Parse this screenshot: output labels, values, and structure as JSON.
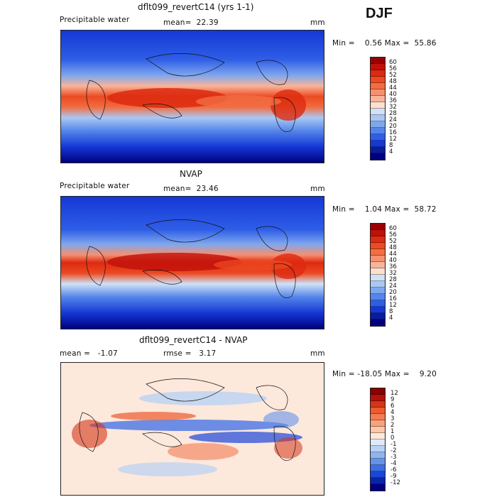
{
  "season": "DJF",
  "panels": [
    {
      "title": "dflt099_revertC14 (yrs 1-1)",
      "left": "Precipitable water",
      "mid": "mean=  22.39",
      "right": "mm",
      "minmax": "Min =    0.56 Max =  55.86",
      "levels": [
        "60",
        "56",
        "52",
        "48",
        "44",
        "40",
        "36",
        "32",
        "28",
        "24",
        "20",
        "16",
        "12",
        "8",
        "4"
      ]
    },
    {
      "title": "NVAP",
      "left": "Precipitable water",
      "mid": "mean=  23.46",
      "right": "mm",
      "minmax": "Min =    1.04 Max =  58.72",
      "levels": [
        "60",
        "56",
        "52",
        "48",
        "44",
        "40",
        "36",
        "32",
        "28",
        "24",
        "20",
        "16",
        "12",
        "8",
        "4"
      ]
    },
    {
      "title": "dflt099_revertC14 - NVAP",
      "left": "mean =   -1.07",
      "mid": "rmse =   3.17",
      "right": "mm",
      "minmax": "Min = -18.05 Max =    9.20",
      "levels": [
        "12",
        "9",
        "6",
        "4",
        "3",
        "2",
        "1",
        "0",
        "-1",
        "-2",
        "-3",
        "-4",
        "-6",
        "-9",
        "-12"
      ]
    }
  ],
  "colors": {
    "abs_scale": [
      "#9b0000",
      "#c0100a",
      "#dd2a10",
      "#ec4a22",
      "#f26d42",
      "#f69070",
      "#f9b498",
      "#fbe0d0",
      "#cfe2f8",
      "#a9c8f4",
      "#7fa7ee",
      "#5585ea",
      "#2f5ee6",
      "#1438d6",
      "#0a1c9a",
      "#00007f"
    ],
    "diff_scale": [
      "#8a0000",
      "#b5100a",
      "#d63418",
      "#ec5a2e",
      "#f47c52",
      "#f8a27e",
      "#fbc8ac",
      "#fde8dc",
      "#deeaf8",
      "#b8d2f4",
      "#8db4ee",
      "#6592ea",
      "#3c6ee6",
      "#1b46d8",
      "#0a24a8",
      "#000080"
    ]
  }
}
